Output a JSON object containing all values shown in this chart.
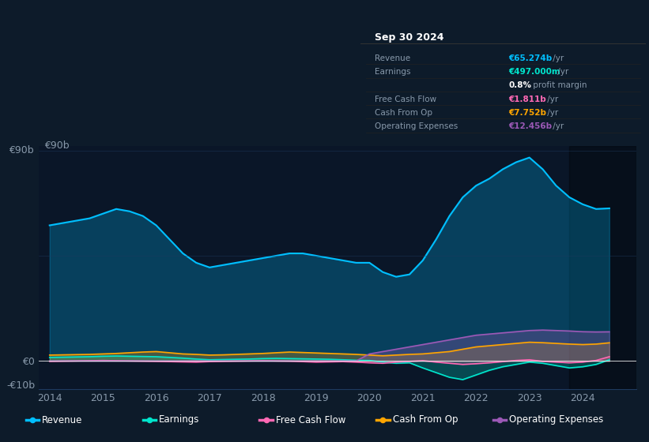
{
  "bg_color": "#0d1b2a",
  "plot_bg_color": "#0a1628",
  "title": "Sep 30 2024",
  "table_data": {
    "Revenue": {
      "value": "€65.274b /yr",
      "color": "#00bfff"
    },
    "Earnings": {
      "value": "€497.000m /yr",
      "color": "#00e5cc"
    },
    "profit_margin": {
      "value": "0.8% profit margin",
      "color": "#ffffff"
    },
    "Free Cash Flow": {
      "value": "€1.811b /yr",
      "color": "#ff69b4"
    },
    "Cash From Op": {
      "value": "€7.752b /yr",
      "color": "#ffa500"
    },
    "Operating Expenses": {
      "value": "€12.456b /yr",
      "color": "#9b59b6"
    }
  },
  "years": [
    2014,
    2014.25,
    2014.5,
    2014.75,
    2015,
    2015.25,
    2015.5,
    2015.75,
    2016,
    2016.25,
    2016.5,
    2016.75,
    2017,
    2017.25,
    2017.5,
    2017.75,
    2018,
    2018.25,
    2018.5,
    2018.75,
    2019,
    2019.25,
    2019.5,
    2019.75,
    2020,
    2020.25,
    2020.5,
    2020.75,
    2021,
    2021.25,
    2021.5,
    2021.75,
    2022,
    2022.25,
    2022.5,
    2022.75,
    2023,
    2023.25,
    2023.5,
    2023.75,
    2024,
    2024.25,
    2024.5
  ],
  "revenue": [
    58,
    59,
    60,
    61,
    63,
    65,
    64,
    62,
    58,
    52,
    46,
    42,
    40,
    41,
    42,
    43,
    44,
    45,
    46,
    46,
    45,
    44,
    43,
    42,
    42,
    38,
    36,
    37,
    43,
    52,
    62,
    70,
    75,
    78,
    82,
    85,
    87,
    82,
    75,
    70,
    67,
    65,
    65.274
  ],
  "earnings": [
    1.5,
    1.6,
    1.7,
    1.8,
    2.0,
    2.1,
    2.0,
    1.9,
    1.8,
    1.5,
    1.2,
    0.8,
    0.5,
    0.6,
    0.7,
    0.8,
    1.0,
    1.1,
    1.0,
    0.9,
    0.8,
    0.7,
    0.5,
    0.3,
    0.2,
    -0.5,
    -1.0,
    -0.8,
    -3.0,
    -5.0,
    -7.0,
    -8.0,
    -6.0,
    -4.0,
    -2.5,
    -1.5,
    -0.5,
    -1.0,
    -2.0,
    -3.0,
    -2.5,
    -1.5,
    0.497
  ],
  "free_cash_flow": [
    -0.2,
    -0.1,
    0.0,
    0.1,
    0.2,
    0.1,
    0.0,
    -0.1,
    -0.2,
    -0.3,
    -0.4,
    -0.5,
    -0.3,
    -0.2,
    -0.1,
    0.0,
    0.1,
    0.0,
    -0.1,
    -0.3,
    -0.5,
    -0.4,
    -0.3,
    -0.5,
    -0.8,
    -1.0,
    -0.5,
    -0.2,
    0.1,
    -0.5,
    -1.0,
    -1.5,
    -1.2,
    -0.8,
    -0.3,
    0.2,
    0.5,
    -0.2,
    -0.5,
    -0.8,
    -0.5,
    0.2,
    1.811
  ],
  "cash_from_op": [
    2.5,
    2.6,
    2.7,
    2.8,
    3.0,
    3.2,
    3.5,
    3.8,
    4.0,
    3.5,
    3.0,
    2.8,
    2.5,
    2.6,
    2.8,
    3.0,
    3.2,
    3.5,
    3.8,
    3.6,
    3.4,
    3.2,
    3.0,
    2.8,
    2.5,
    2.2,
    2.5,
    2.8,
    3.0,
    3.5,
    4.0,
    5.0,
    6.0,
    6.5,
    7.0,
    7.5,
    8.0,
    7.8,
    7.5,
    7.2,
    7.0,
    7.2,
    7.752
  ],
  "operating_expenses": [
    0.0,
    0.0,
    0.0,
    0.0,
    0.0,
    0.0,
    0.0,
    0.0,
    0.0,
    0.0,
    0.0,
    0.0,
    0.0,
    0.0,
    0.0,
    0.0,
    0.0,
    0.0,
    0.0,
    0.0,
    0.0,
    0.0,
    0.0,
    0.0,
    3.0,
    4.0,
    5.0,
    6.0,
    7.0,
    8.0,
    9.0,
    10.0,
    11.0,
    11.5,
    12.0,
    12.5,
    13.0,
    13.2,
    13.0,
    12.8,
    12.5,
    12.4,
    12.456
  ],
  "ylim": [
    -12,
    92
  ],
  "xlim": [
    2013.8,
    2025.0
  ],
  "yticks": [
    -10,
    0,
    45,
    90
  ],
  "ytick_labels": [
    "-€10b",
    "€0",
    "",
    "€90b"
  ],
  "xticks": [
    2014,
    2015,
    2016,
    2017,
    2018,
    2019,
    2020,
    2021,
    2022,
    2023,
    2024
  ],
  "revenue_color": "#00bfff",
  "earnings_color": "#00e5cc",
  "fcf_color": "#ff69b4",
  "cash_op_color": "#ffa500",
  "op_exp_color": "#9b59b6",
  "zero_line_color": "#ffffff",
  "grid_color": "#1e3a5f",
  "text_color": "#8899aa",
  "highlight_color": "#1a3a5c"
}
